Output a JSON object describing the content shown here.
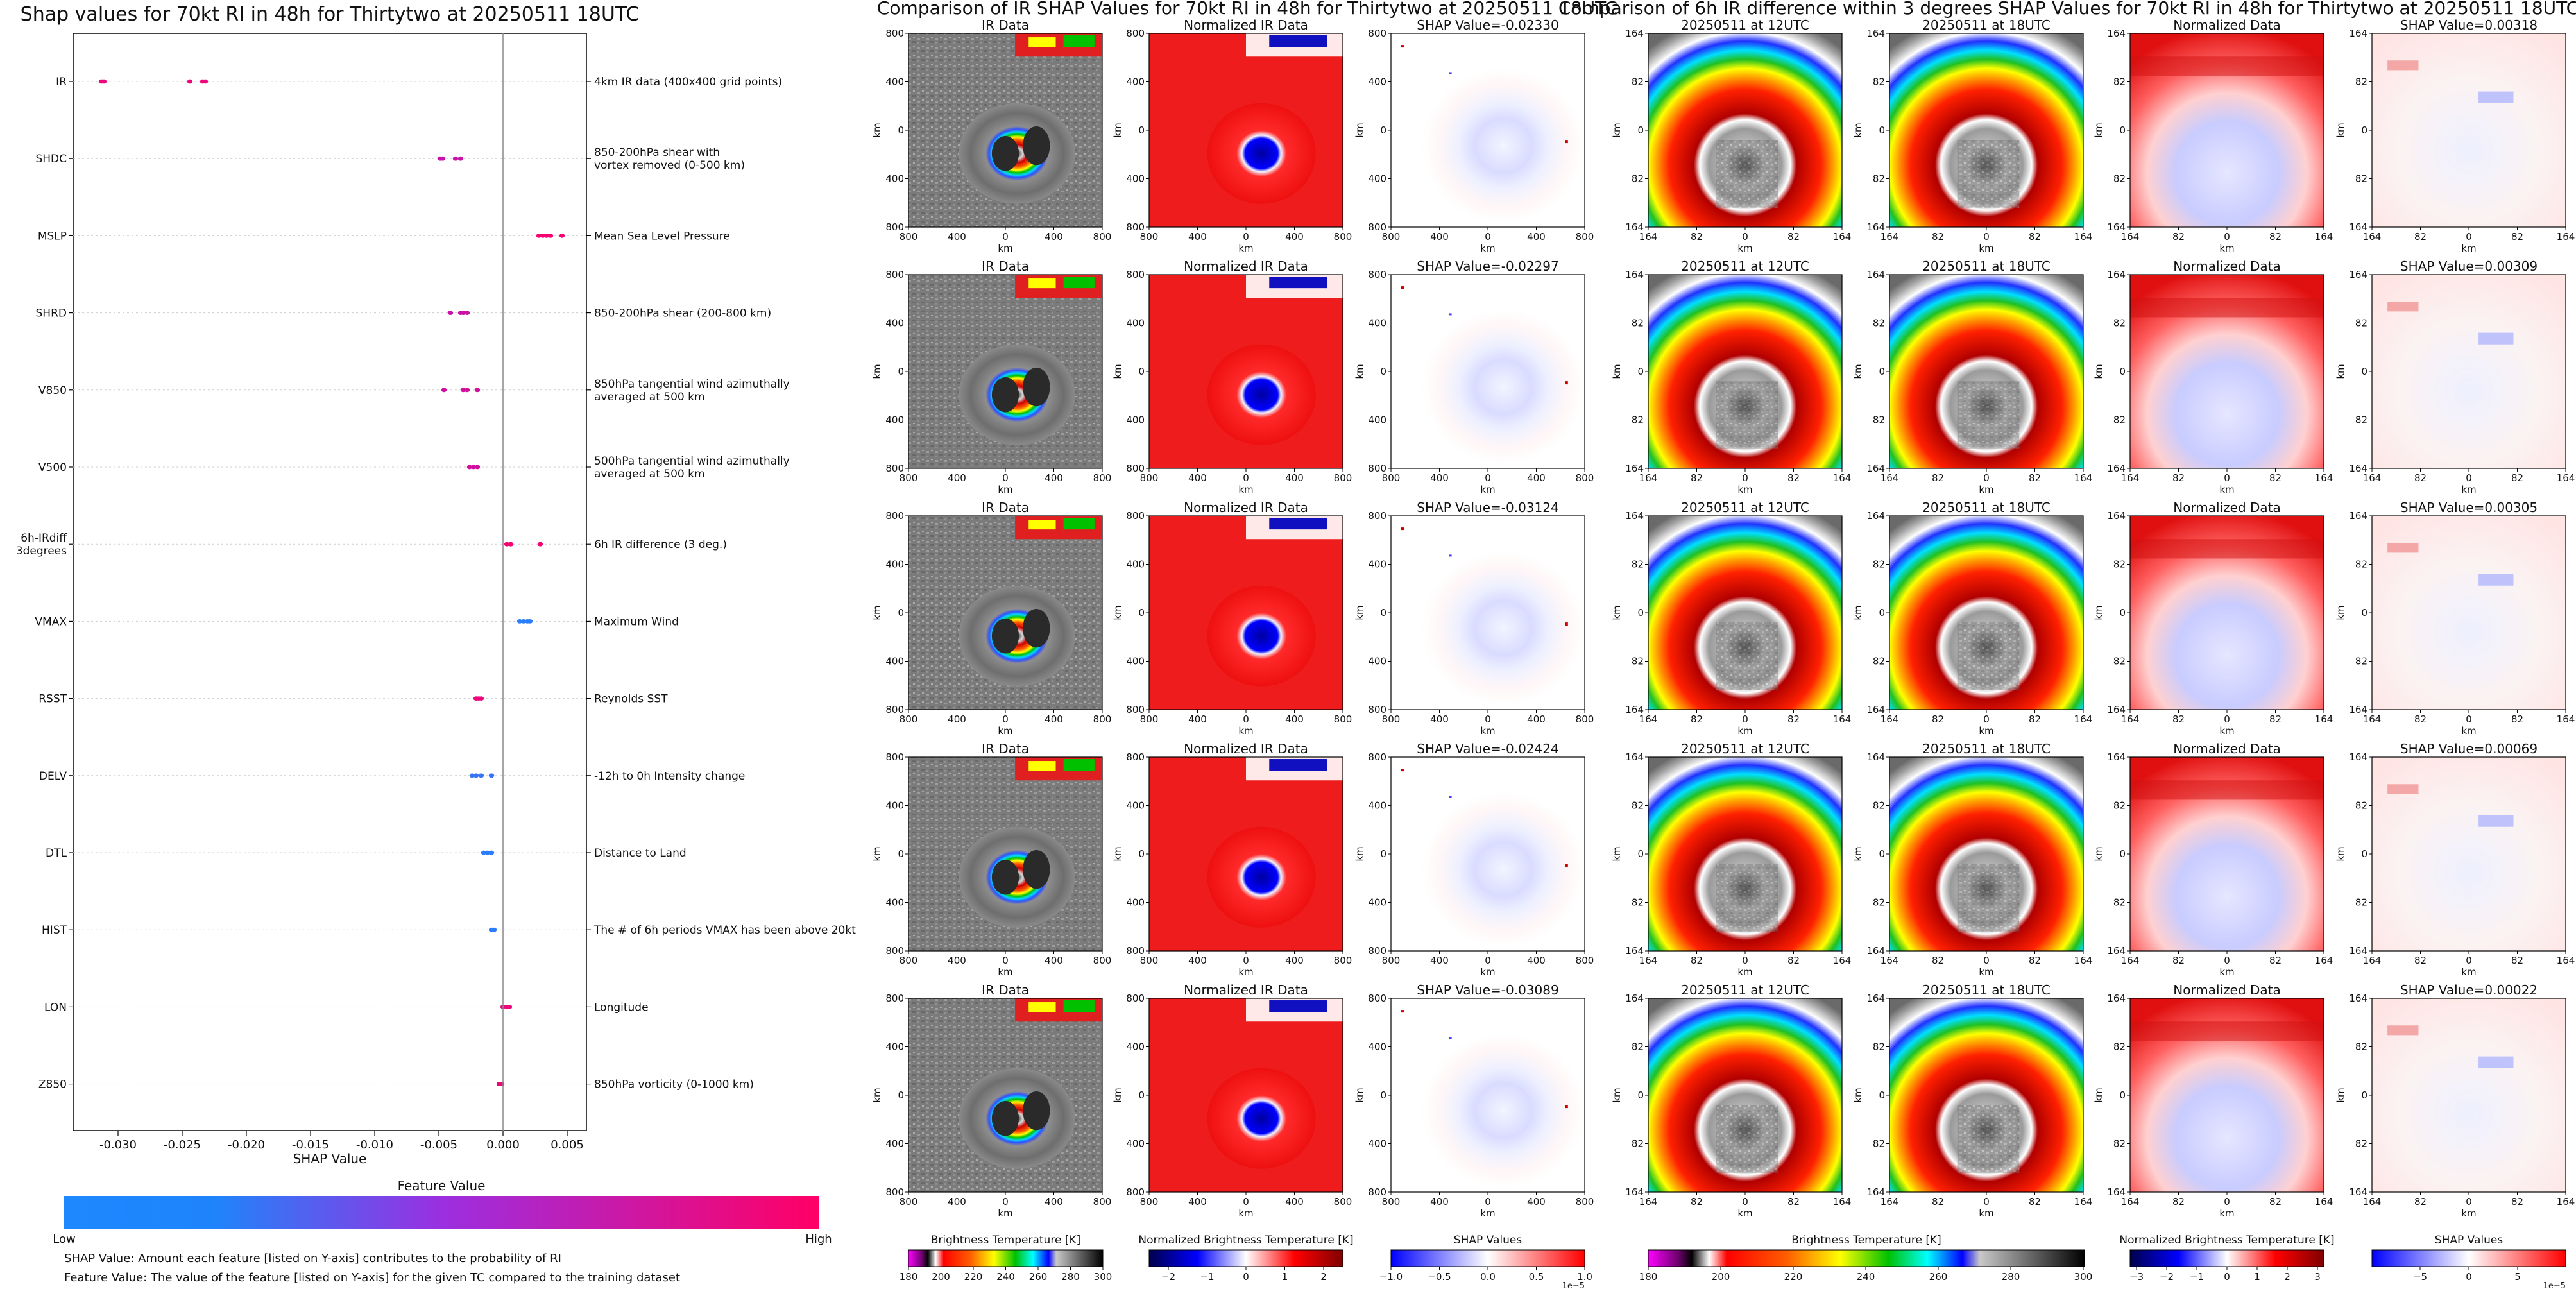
{
  "chart_data": [
    {
      "type": "scatter",
      "title": "Shap values for 70kt RI in 48h for Thirtytwo at 20250511 18UTC",
      "xlabel": "SHAP Value",
      "ylabel": "",
      "xlim": [
        -0.0335,
        0.0065
      ],
      "xticks": [
        "-0.030",
        "-0.025",
        "-0.020",
        "-0.015",
        "-0.010",
        "-0.005",
        "0.000",
        "0.005"
      ],
      "xtick_values": [
        -0.03,
        -0.025,
        -0.02,
        -0.015,
        -0.01,
        -0.005,
        0.0,
        0.005
      ],
      "colorbar": {
        "title": "Feature Value",
        "low_label": "Low",
        "high_label": "High",
        "low_color": "#1e88ff",
        "high_color": "#ff0066"
      },
      "footnotes": [
        "SHAP Value: Amount each feature [listed on Y-axis] contributes to the probability of RI",
        "Feature Value: The value of the feature [listed on Y-axis] for the given TC compared to the training dataset"
      ],
      "features": [
        {
          "name": "IR",
          "description": "4km IR data (400x400 grid points)",
          "points": [
            [
              -0.0313,
              0.9
            ],
            [
              -0.0311,
              0.9
            ],
            [
              -0.0244,
              0.9
            ],
            [
              -0.0234,
              0.9
            ],
            [
              -0.0232,
              0.9
            ]
          ]
        },
        {
          "name": "SHDC",
          "description": "850-200hPa shear with\nvortex removed (0-500 km)",
          "points": [
            [
              -0.0049,
              0.7
            ],
            [
              -0.0047,
              0.7
            ],
            [
              -0.0037,
              0.7
            ],
            [
              -0.0033,
              0.7
            ]
          ]
        },
        {
          "name": "MSLP",
          "description": "Mean Sea Level Pressure",
          "points": [
            [
              0.0028,
              0.95
            ],
            [
              0.0031,
              0.95
            ],
            [
              0.0034,
              0.95
            ],
            [
              0.0037,
              0.95
            ],
            [
              0.0046,
              0.95
            ]
          ]
        },
        {
          "name": "SHRD",
          "description": "850-200hPa shear (200-800 km)",
          "points": [
            [
              -0.0041,
              0.7
            ],
            [
              -0.0033,
              0.7
            ],
            [
              -0.0031,
              0.7
            ],
            [
              -0.0028,
              0.7
            ]
          ]
        },
        {
          "name": "V850",
          "description": "850hPa tangential wind azimuthally\naveraged at 500 km",
          "points": [
            [
              -0.0046,
              0.75
            ],
            [
              -0.0031,
              0.75
            ],
            [
              -0.0028,
              0.75
            ],
            [
              -0.002,
              0.75
            ]
          ]
        },
        {
          "name": "V500",
          "description": "500hPa tangential wind azimuthally\naveraged at 500 km",
          "points": [
            [
              -0.0026,
              0.75
            ],
            [
              -0.0023,
              0.75
            ],
            [
              -0.002,
              0.75
            ]
          ]
        },
        {
          "name": "6h-IRdiff\n3degrees",
          "description": "6h IR difference (3 deg.)",
          "points": [
            [
              0.0003,
              0.95
            ],
            [
              0.0006,
              0.95
            ],
            [
              0.0029,
              0.95
            ]
          ]
        },
        {
          "name": "VMAX",
          "description": "Maximum Wind",
          "points": [
            [
              0.0013,
              0.05
            ],
            [
              0.0016,
              0.05
            ],
            [
              0.0019,
              0.05
            ],
            [
              0.0021,
              0.05
            ]
          ]
        },
        {
          "name": "RSST",
          "description": "Reynolds SST",
          "points": [
            [
              -0.0021,
              0.9
            ],
            [
              -0.0019,
              0.9
            ],
            [
              -0.0017,
              0.9
            ]
          ]
        },
        {
          "name": "DELV",
          "description": "-12h to 0h Intensity change",
          "points": [
            [
              -0.0024,
              0.1
            ],
            [
              -0.0021,
              0.1
            ],
            [
              -0.0017,
              0.1
            ],
            [
              -0.0009,
              0.1
            ]
          ]
        },
        {
          "name": "DTL",
          "description": "Distance to Land",
          "points": [
            [
              -0.0015,
              0.05
            ],
            [
              -0.0012,
              0.05
            ],
            [
              -0.0009,
              0.05
            ]
          ]
        },
        {
          "name": "HIST",
          "description": "The # of 6h periods VMAX has been above 20kt",
          "points": [
            [
              -0.0009,
              0.05
            ],
            [
              -0.0007,
              0.05
            ]
          ]
        },
        {
          "name": "LON",
          "description": "Longitude",
          "points": [
            [
              0.0,
              0.9
            ],
            [
              0.0003,
              0.9
            ],
            [
              0.0005,
              0.9
            ]
          ]
        },
        {
          "name": "Z850",
          "description": "850hPa vorticity (0-1000 km)",
          "points": [
            [
              -0.0003,
              0.9
            ],
            [
              -0.0001,
              0.9
            ]
          ]
        }
      ]
    },
    {
      "type": "heatmap",
      "title": "Comparison of IR SHAP Values for 70kt RI in 48h for Thirtytwo at 20250511 18UTC",
      "columns": [
        "IR Data",
        "Normalized IR Data"
      ],
      "shap_titles": [
        "SHAP Value=-0.02330",
        "SHAP Value=-0.02297",
        "SHAP Value=-0.03124",
        "SHAP Value=-0.02424",
        "SHAP Value=-0.03089"
      ],
      "axis_unit": "km",
      "xticks": [
        "800",
        "400",
        "0",
        "400",
        "800"
      ],
      "yticks": [
        "800",
        "400",
        "0",
        "400",
        "800"
      ],
      "colorbars": [
        {
          "label": "Brightness Temperature [K]",
          "ticks": [
            "180",
            "200",
            "220",
            "240",
            "260",
            "280",
            "300"
          ]
        },
        {
          "label": "Normalized Brightness Temperature [K]",
          "ticks": [
            "−2",
            "−1",
            "0",
            "1",
            "2"
          ]
        },
        {
          "label": "SHAP Values",
          "ticks": [
            "−1.0",
            "−0.5",
            "0.0",
            "0.5",
            "1.0"
          ],
          "offset": "1e−5"
        }
      ]
    },
    {
      "type": "heatmap",
      "title": "Comparison of 6h IR difference within 3 degrees SHAP Values for 70kt RI in 48h for Thirtytwo at 20250511 18UTC",
      "columns": [
        "20250511 at 12UTC",
        "20250511 at 18UTC",
        "Normalized Data"
      ],
      "shap_titles": [
        "SHAP Value=0.00318",
        "SHAP Value=0.00309",
        "SHAP Value=0.00305",
        "SHAP Value=0.00069",
        "SHAP Value=0.00022"
      ],
      "axis_unit": "km",
      "xticks": [
        "164",
        "82",
        "0",
        "82",
        "164"
      ],
      "yticks": [
        "164",
        "82",
        "0",
        "82",
        "164"
      ],
      "colorbars": [
        {
          "label": "Brightness Temperature [K]",
          "ticks": [
            "180",
            "200",
            "220",
            "240",
            "260",
            "280",
            "300"
          ]
        },
        {
          "label": "Normalized Brightness Temperature [K]",
          "ticks": [
            "−3",
            "−2",
            "−1",
            "0",
            "1",
            "2",
            "3"
          ]
        },
        {
          "label": "SHAP Values",
          "ticks": [
            "−5",
            "0",
            "5"
          ],
          "offset": "1e−5"
        }
      ]
    }
  ],
  "colors": {
    "low": "#1e88ff",
    "high": "#ff0066",
    "mid": "#a31fd6"
  }
}
